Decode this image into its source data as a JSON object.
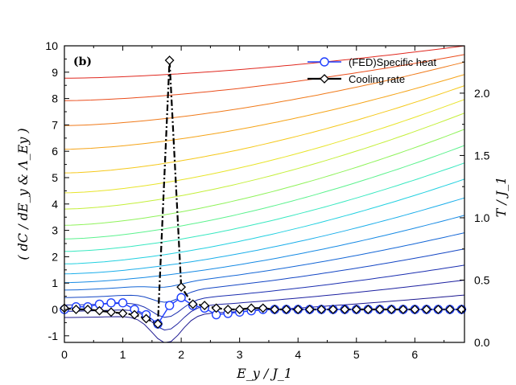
{
  "chart_data": {
    "type": "line",
    "panel_label": "(b)",
    "xlabel": "E_y / J_1",
    "ylabel_left": "( dC / dE_y & Λ_Ey )",
    "ylabel_right": "T / J_1",
    "xlim": [
      0,
      6.85
    ],
    "ylim_left": [
      -1.25,
      10
    ],
    "ylim_right": [
      0,
      2.38
    ],
    "x_ticks": [
      0,
      1,
      2,
      3,
      4,
      5,
      6
    ],
    "y_ticks_left": [
      -1,
      0,
      1,
      2,
      3,
      4,
      5,
      6,
      7,
      8,
      9,
      10
    ],
    "y_ticks_right": [
      0.0,
      0.5,
      1.0,
      1.5,
      2.0
    ],
    "x_tick_labels": [
      "0",
      "1",
      "2",
      "3",
      "4",
      "5",
      "6"
    ],
    "y_tick_labels_left": [
      "-1",
      "0",
      "1",
      "2",
      "3",
      "4",
      "5",
      "6",
      "7",
      "8",
      "9",
      "10"
    ],
    "y_tick_labels_right": [
      "0.0",
      "0.5",
      "1.0",
      "1.5",
      "2.0"
    ],
    "legend": [
      {
        "label": "(FED)Specific heat",
        "color": "#1f3fff",
        "marker": "circle",
        "style": "solid"
      },
      {
        "label": "Cooling rate",
        "color": "#000000",
        "marker": "diamond",
        "style": "dashdot"
      }
    ],
    "legend_position": "top-right",
    "series": [
      {
        "name": "(FED)Specific heat",
        "color": "#1f3fff",
        "x": [
          0.0,
          0.2,
          0.4,
          0.6,
          0.8,
          1.0,
          1.2,
          1.4,
          1.6,
          1.8,
          2.0,
          2.2,
          2.4,
          2.6,
          2.8,
          3.0,
          3.2,
          3.4,
          3.6,
          3.8,
          4.0,
          4.2,
          4.4,
          4.6,
          4.8,
          5.0,
          5.2,
          5.4,
          5.6,
          5.8,
          6.0,
          6.2,
          6.4,
          6.6,
          6.8
        ],
        "values": [
          0.0,
          0.1,
          0.1,
          0.2,
          0.25,
          0.25,
          0.0,
          -0.2,
          -0.55,
          0.15,
          0.45,
          0.15,
          0.05,
          -0.2,
          -0.15,
          -0.1,
          -0.05,
          0.0,
          0.0,
          0.0,
          0.0,
          0.0,
          0.0,
          0.0,
          0.0,
          0.0,
          0.0,
          0.0,
          0.0,
          0.0,
          0.0,
          0.0,
          0.0,
          0.0,
          0.0
        ]
      },
      {
        "name": "Cooling rate",
        "color": "#000000",
        "x": [
          0.0,
          0.2,
          0.4,
          0.6,
          0.8,
          1.0,
          1.2,
          1.4,
          1.6,
          1.8,
          2.0,
          2.2,
          2.4,
          2.6,
          2.8,
          3.0,
          3.2,
          3.4,
          3.6,
          3.8,
          4.0,
          4.2,
          4.4,
          4.6,
          4.8,
          5.0,
          5.2,
          5.4,
          5.6,
          5.8,
          6.0,
          6.2,
          6.4,
          6.6,
          6.8
        ],
        "values": [
          0.05,
          0.0,
          0.0,
          -0.05,
          -0.1,
          -0.15,
          -0.2,
          -0.35,
          -0.55,
          9.45,
          0.85,
          0.2,
          0.15,
          0.05,
          0.0,
          0.0,
          0.05,
          0.05,
          0.0,
          0.0,
          0.0,
          0.0,
          0.0,
          0.0,
          0.0,
          0.0,
          0.0,
          0.0,
          0.0,
          0.0,
          0.0,
          0.0,
          0.0,
          0.0,
          0.0
        ]
      }
    ],
    "contour_lines": {
      "description": "Isotherm background lines in T/J_1 units (right axis), colored red (high T) to blue (low T)",
      "right_axis_levels_at_x0": [
        2.12,
        1.94,
        1.74,
        1.55,
        1.36,
        1.2,
        1.07,
        0.94,
        0.83,
        0.73,
        0.63,
        0.55,
        0.48,
        0.42,
        0.36,
        0.3,
        0.25,
        0.2
      ],
      "rise_to_right_axis_at_xmax": [
        2.38,
        2.31,
        2.25,
        2.15,
        2.06,
        1.95,
        1.84,
        1.71,
        1.58,
        1.44,
        1.31,
        1.16,
        1.02,
        0.88,
        0.75,
        0.62,
        0.5,
        0.38
      ],
      "colors": [
        "#e0281f",
        "#ea4d1c",
        "#f07a1a",
        "#f5a418",
        "#f5c81a",
        "#e8e42a",
        "#c4ef3a",
        "#8ff35a",
        "#5cf28e",
        "#38e8c0",
        "#22d0e0",
        "#1aaeea",
        "#168ae4",
        "#1466d6",
        "#1446c4",
        "#1a2eb0",
        "#1c20a0",
        "#1c1890"
      ]
    }
  }
}
